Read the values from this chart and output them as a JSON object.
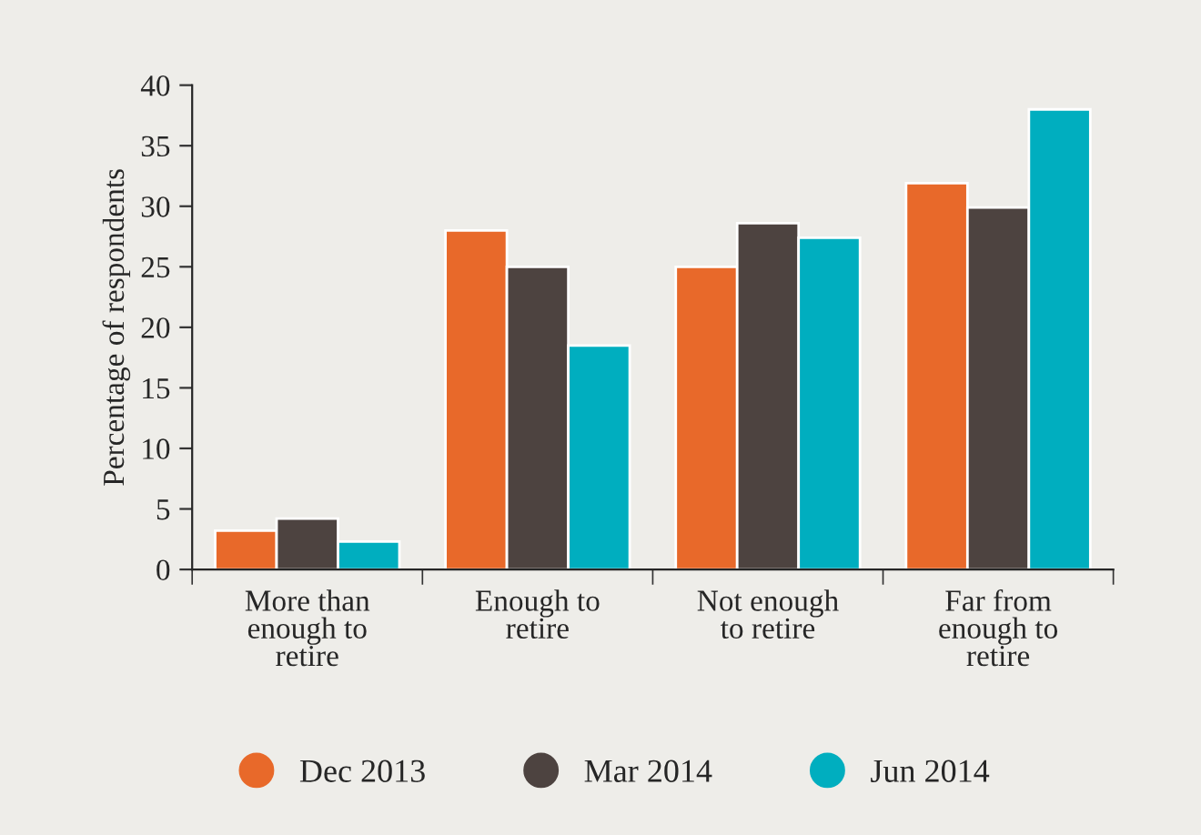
{
  "chart_data": {
    "type": "bar",
    "ylabel": "Percentage of respondents",
    "categories": [
      "More than\nenough to\nretire",
      "Enough to\nretire",
      "Not enough\nto retire",
      "Far from\nenough to\nretire"
    ],
    "series": [
      {
        "name": "Dec 2013",
        "color": "#e8692a",
        "values": [
          3.2,
          28.0,
          25.0,
          31.9
        ]
      },
      {
        "name": "Mar 2014",
        "color": "#4d4340",
        "values": [
          4.2,
          25.0,
          28.6,
          29.9
        ]
      },
      {
        "name": "Jun 2014",
        "color": "#00aebf",
        "values": [
          2.3,
          18.5,
          27.4,
          38.0
        ]
      }
    ],
    "ylim": [
      0,
      40
    ],
    "yticks": [
      0,
      5,
      10,
      15,
      20,
      25,
      30,
      35,
      40
    ],
    "grid": false,
    "legend": "bottom"
  }
}
